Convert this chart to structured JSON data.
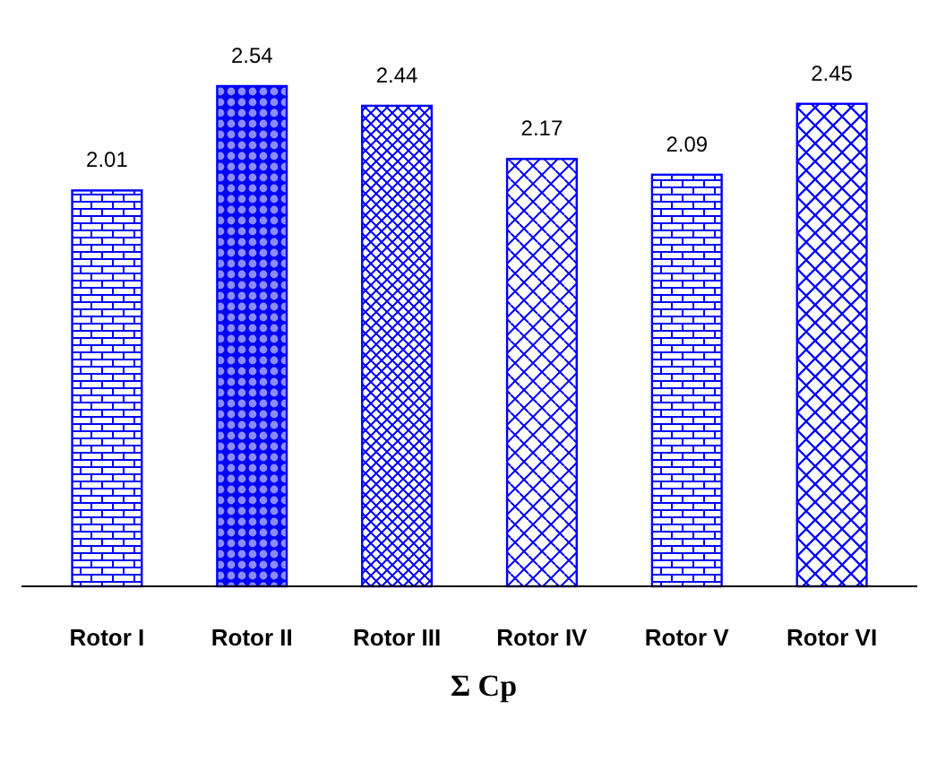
{
  "chart_data": {
    "type": "bar",
    "xlabel": "Σ Cp",
    "categories": [
      "Rotor I",
      "Rotor II",
      "Rotor III",
      "Rotor IV",
      "Rotor V",
      "Rotor VI"
    ],
    "values": [
      2.01,
      2.54,
      2.44,
      2.17,
      2.09,
      2.45
    ],
    "color": "#0000ff",
    "data_labels": true
  }
}
